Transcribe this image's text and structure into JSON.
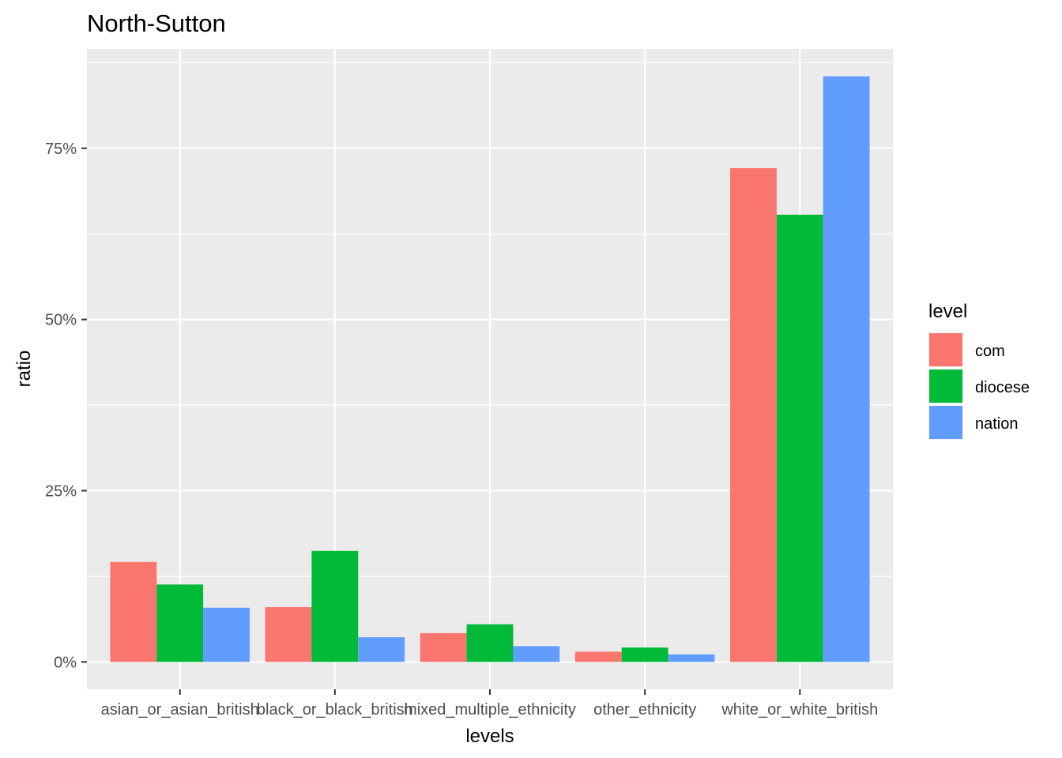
{
  "chart_data": {
    "type": "bar",
    "title": "North-Sutton",
    "xlabel": "levels",
    "ylabel": "ratio",
    "categories": [
      "asian_or_asian_british",
      "black_or_black_british",
      "mixed_multiple_ethnicity",
      "other_ethnicity",
      "white_or_white_british"
    ],
    "series": [
      {
        "name": "com",
        "color": "#F8766D",
        "values": [
          0.146,
          0.08,
          0.042,
          0.015,
          0.721
        ]
      },
      {
        "name": "diocese",
        "color": "#00BA38",
        "values": [
          0.113,
          0.162,
          0.055,
          0.021,
          0.653
        ]
      },
      {
        "name": "nation",
        "color": "#619CFF",
        "values": [
          0.079,
          0.036,
          0.023,
          0.011,
          0.855
        ]
      }
    ],
    "ylim": [
      -0.04,
      0.895
    ],
    "yticks": [
      0,
      0.25,
      0.5,
      0.75
    ],
    "ytick_labels": [
      "0%",
      "25%",
      "50%",
      "75%"
    ],
    "grid": true,
    "legend_title": "level",
    "legend_position": "right",
    "panel_background": "#EBEBEB",
    "grid_color": "#FFFFFF"
  }
}
